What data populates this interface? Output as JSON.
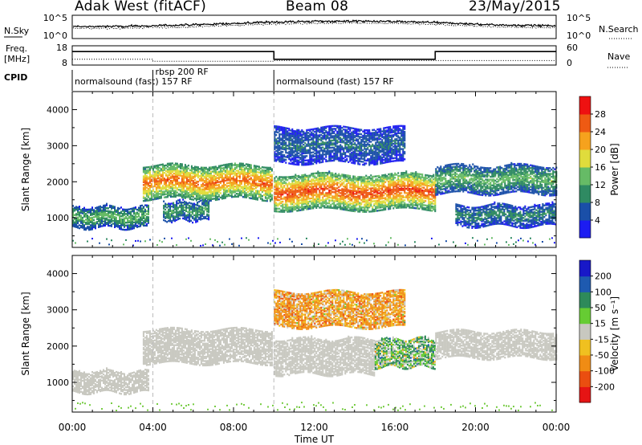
{
  "header": {
    "radar": "Adak West (fitACF)",
    "beam": "Beam 08",
    "date": "23/May/2015"
  },
  "colors": {
    "power_scale": [
      "#1c1cf2",
      "#1a4fa8",
      "#2f8a62",
      "#66bb66",
      "#e0dc3c",
      "#f6a21d",
      "#ee5a13",
      "#ee1111"
    ],
    "velocity_scale": [
      "#1818c8",
      "#1e5ab0",
      "#2e8a5a",
      "#66cc33",
      "#c8c8c0",
      "#f0c020",
      "#f08c14",
      "#ea4e10",
      "#e61414"
    ],
    "scatter_grey": "#c8c8c0",
    "ground_scatter_green": "#77cc44"
  },
  "chart_data": [
    {
      "type": "line",
      "name": "sky-noise",
      "ylabel": "N.Sky",
      "right_label": "N.Search",
      "y_ticks_left": [
        "10^5",
        "10^0"
      ],
      "y_ticks_right": [
        "10^5",
        "10^0"
      ],
      "x_range_hours": [
        0,
        24
      ],
      "values": [
        {
          "t": 0.0,
          "v": 0.45
        },
        {
          "t": 2.0,
          "v": 0.45
        },
        {
          "t": 4.0,
          "v": 0.48
        },
        {
          "t": 6.0,
          "v": 0.52
        },
        {
          "t": 8.0,
          "v": 0.58
        },
        {
          "t": 10.0,
          "v": 0.64
        },
        {
          "t": 12.0,
          "v": 0.67
        },
        {
          "t": 14.0,
          "v": 0.68
        },
        {
          "t": 16.0,
          "v": 0.66
        },
        {
          "t": 18.0,
          "v": 0.62
        },
        {
          "t": 20.0,
          "v": 0.55
        },
        {
          "t": 22.0,
          "v": 0.5
        },
        {
          "t": 24.0,
          "v": 0.48
        }
      ]
    },
    {
      "type": "line",
      "name": "frequency",
      "ylabel": "Freq.\n[MHz]",
      "right_label": "Nave",
      "y_ticks_left": [
        "18",
        "8"
      ],
      "y_ticks_right": [
        "60",
        "0"
      ],
      "ylim": [
        8,
        18
      ],
      "frequency_mhz": [
        {
          "t": 0.0,
          "v": 15.0
        },
        {
          "t": 10.0,
          "v": 15.0
        },
        {
          "t": 10.0,
          "v": 11.0
        },
        {
          "t": 18.0,
          "v": 11.0
        },
        {
          "t": 18.0,
          "v": 15.0
        },
        {
          "t": 24.0,
          "v": 15.0
        }
      ],
      "nave": [
        {
          "t": 0.0,
          "v": 18
        },
        {
          "t": 4.0,
          "v": 18
        },
        {
          "t": 4.0,
          "v": 12
        },
        {
          "t": 10.0,
          "v": 12
        },
        {
          "t": 10.0,
          "v": 14
        },
        {
          "t": 24.0,
          "v": 14
        }
      ]
    },
    {
      "type": "table",
      "name": "cpid",
      "label": "CPID",
      "segments": [
        {
          "start": 0.0,
          "end": 4.0,
          "text": "normalsound (fast) 157 RF",
          "row": "low"
        },
        {
          "start": 4.0,
          "end": 10.0,
          "text": "rbsp 200 RF",
          "row": "high"
        },
        {
          "start": 10.0,
          "end": 24.0,
          "text": "normalsound (fast) 157 RF",
          "row": "low"
        }
      ]
    },
    {
      "type": "heatmap",
      "name": "power",
      "ylabel": "Slant Range [km]",
      "ylim": [
        180,
        4500
      ],
      "y_ticks": [
        1000,
        2000,
        3000,
        4000
      ],
      "x_range_hours": [
        0,
        24
      ],
      "colorbar": {
        "label": "Power [dB]",
        "ticks": [
          "4",
          "8",
          "12",
          "16",
          "20",
          "24",
          "28"
        ]
      },
      "echo_bands": [
        {
          "t": [
            0.0,
            3.8
          ],
          "range": [
            700,
            1300
          ],
          "peak_db": 14
        },
        {
          "t": [
            4.5,
            6.8
          ],
          "range": [
            900,
            1450
          ],
          "peak_db": 12
        },
        {
          "t": [
            3.5,
            9.9
          ],
          "range": [
            1500,
            2450
          ],
          "peak_db": 26
        },
        {
          "t": [
            10.0,
            18.0
          ],
          "range": [
            1200,
            2200
          ],
          "peak_db": 28
        },
        {
          "t": [
            18.0,
            24.0
          ],
          "range": [
            1650,
            2450
          ],
          "peak_db": 14
        },
        {
          "t": [
            19.0,
            24.0
          ],
          "range": [
            750,
            1350
          ],
          "peak_db": 10
        },
        {
          "t": [
            10.0,
            16.5
          ],
          "range": [
            2500,
            3500
          ],
          "peak_db": 8
        }
      ]
    },
    {
      "type": "heatmap",
      "name": "velocity",
      "ylabel": "Slant Range [km]",
      "xlabel": "Time UT",
      "ylim": [
        180,
        4500
      ],
      "y_ticks": [
        1000,
        2000,
        3000,
        4000
      ],
      "x_range_hours": [
        0,
        24
      ],
      "x_ticks": [
        "00:00",
        "04:00",
        "08:00",
        "12:00",
        "16:00",
        "20:00",
        "00:00"
      ],
      "colorbar": {
        "label": "Velocity [m s⁻¹]",
        "ticks": [
          "200",
          "100",
          "50",
          "15",
          "-15",
          "-50",
          "-100",
          "-200"
        ]
      },
      "echo_bands": [
        {
          "t": [
            0.0,
            3.8
          ],
          "range": [
            700,
            1300
          ],
          "class": "ground"
        },
        {
          "t": [
            3.5,
            9.9
          ],
          "range": [
            1500,
            2450
          ],
          "class": "ground"
        },
        {
          "t": [
            10.0,
            15.0
          ],
          "range": [
            1200,
            2200
          ],
          "class": "ground"
        },
        {
          "t": [
            15.0,
            18.0
          ],
          "range": [
            1400,
            2200
          ],
          "class": "ionospheric",
          "v": 25
        },
        {
          "t": [
            18.0,
            24.0
          ],
          "range": [
            1650,
            2400
          ],
          "class": "ground"
        },
        {
          "t": [
            10.0,
            16.5
          ],
          "range": [
            2500,
            3500
          ],
          "class": "ionospheric",
          "v": -40
        }
      ]
    }
  ]
}
